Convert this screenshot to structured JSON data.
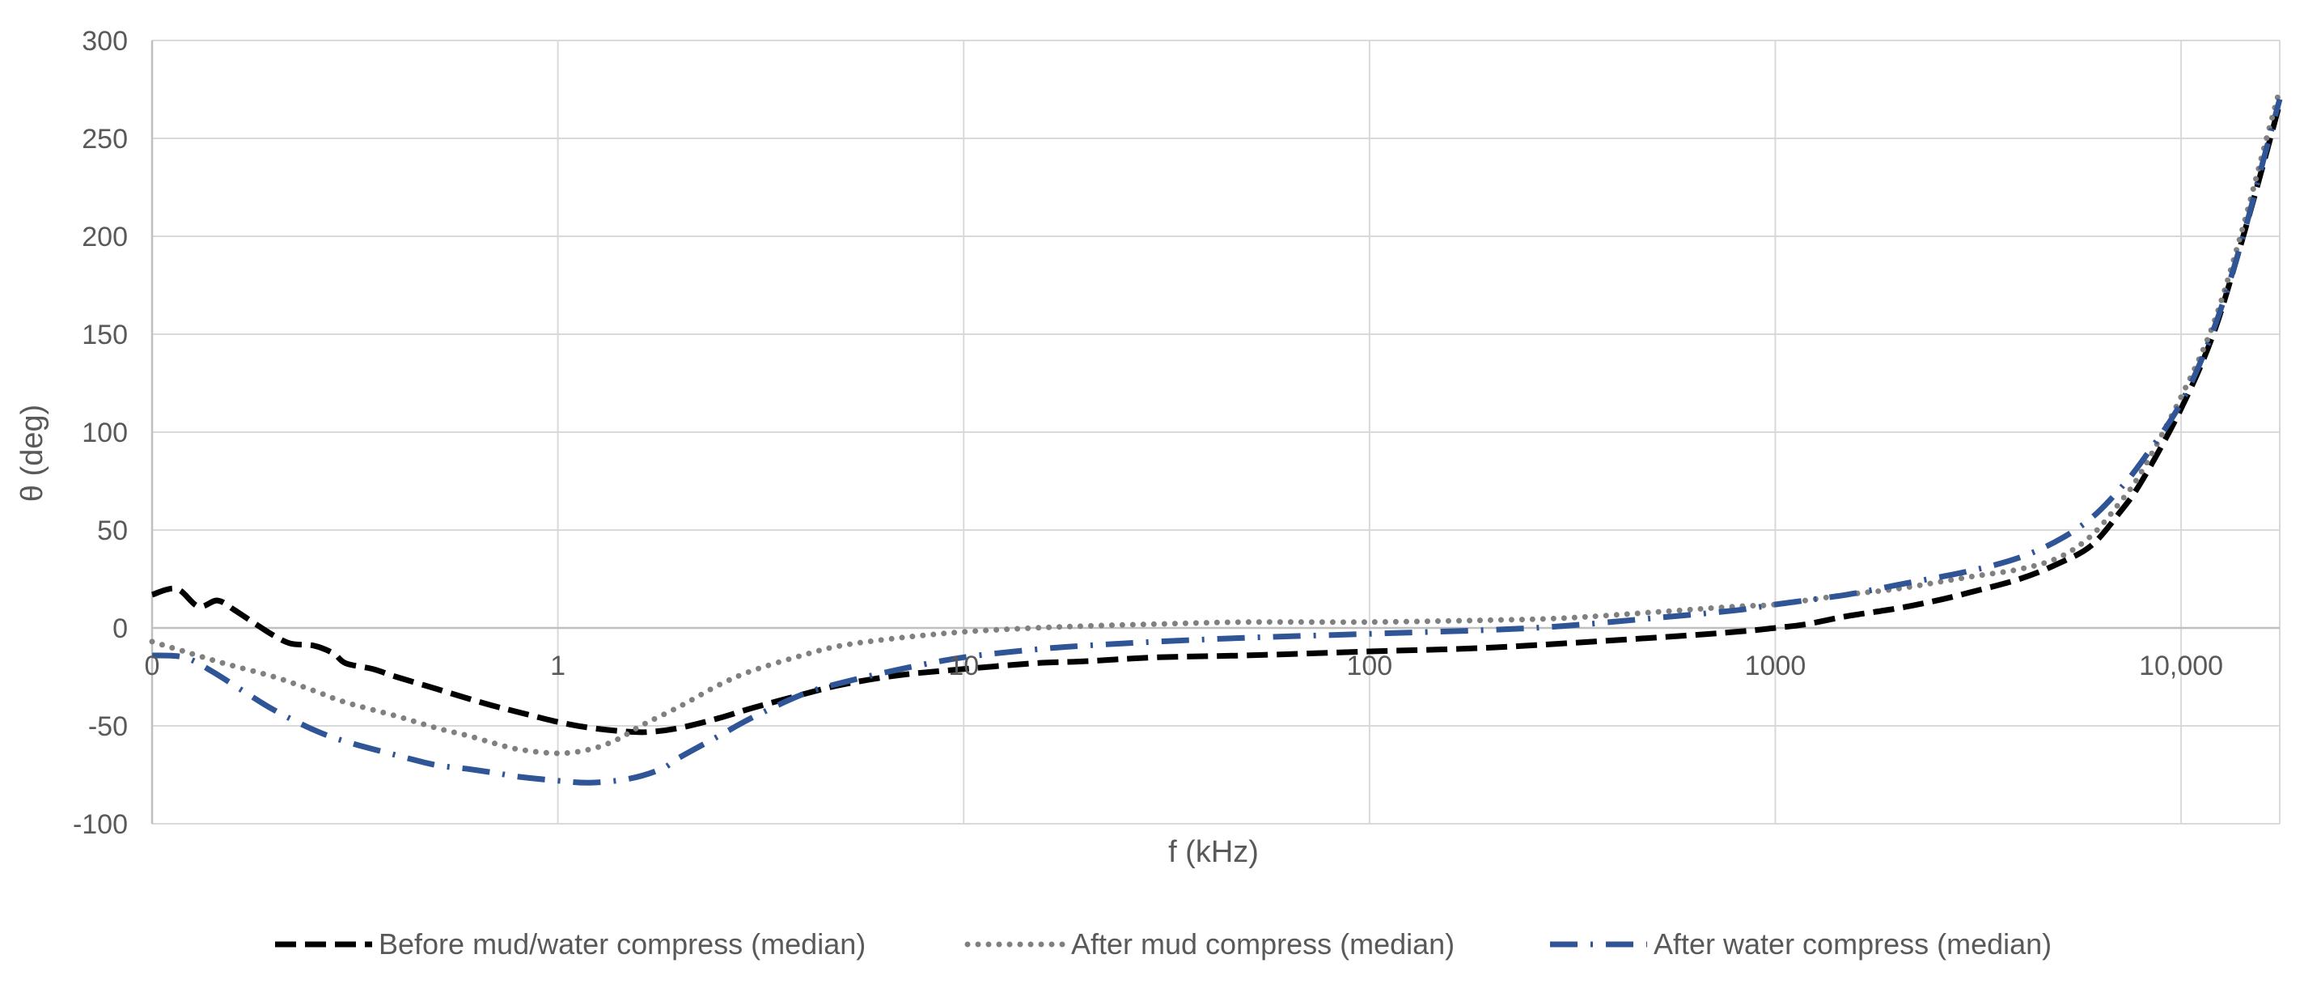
{
  "chart_data": {
    "type": "line",
    "xlabel": "f (kHz)",
    "ylabel": "θ (deg)",
    "x_scale": "log",
    "xlim": [
      0.1,
      17500
    ],
    "ylim": [
      -100,
      300
    ],
    "x_ticks": [
      {
        "value": 0.1,
        "label": "0"
      },
      {
        "value": 1,
        "label": "1"
      },
      {
        "value": 10,
        "label": "10"
      },
      {
        "value": 100,
        "label": "100"
      },
      {
        "value": 1000,
        "label": "1000"
      },
      {
        "value": 10000,
        "label": "10,000"
      }
    ],
    "y_ticks": [
      -100,
      -50,
      0,
      50,
      100,
      150,
      200,
      250,
      300
    ],
    "grid": true,
    "legend_position": "bottom",
    "colors": {
      "grid": "#d9d9d9",
      "axis": "#bfbfbf",
      "text": "#595959"
    },
    "series": [
      {
        "name": "Before mud/water compress (median)",
        "color": "#000000",
        "style": "dashed",
        "points": [
          [
            0.1,
            17
          ],
          [
            0.115,
            20
          ],
          [
            0.13,
            11
          ],
          [
            0.145,
            14
          ],
          [
            0.16,
            9
          ],
          [
            0.18,
            2
          ],
          [
            0.2,
            -4
          ],
          [
            0.22,
            -8
          ],
          [
            0.25,
            -9
          ],
          [
            0.28,
            -13
          ],
          [
            0.3,
            -18
          ],
          [
            0.35,
            -21
          ],
          [
            0.4,
            -25
          ],
          [
            0.5,
            -31
          ],
          [
            0.6,
            -36
          ],
          [
            0.7,
            -40
          ],
          [
            0.8,
            -43
          ],
          [
            1,
            -48
          ],
          [
            1.2,
            -51
          ],
          [
            1.5,
            -53
          ],
          [
            1.7,
            -53
          ],
          [
            2,
            -51
          ],
          [
            2.5,
            -46
          ],
          [
            3,
            -41
          ],
          [
            4,
            -34
          ],
          [
            5,
            -29
          ],
          [
            7,
            -24
          ],
          [
            10,
            -21
          ],
          [
            15,
            -18
          ],
          [
            20,
            -17
          ],
          [
            30,
            -15
          ],
          [
            50,
            -14
          ],
          [
            100,
            -12
          ],
          [
            200,
            -10
          ],
          [
            500,
            -5
          ],
          [
            800,
            -2
          ],
          [
            1000,
            0
          ],
          [
            1200,
            2
          ],
          [
            1500,
            6
          ],
          [
            2000,
            10
          ],
          [
            2500,
            14
          ],
          [
            3000,
            18
          ],
          [
            4000,
            25
          ],
          [
            5000,
            33
          ],
          [
            6000,
            42
          ],
          [
            7000,
            58
          ],
          [
            8000,
            75
          ],
          [
            10000,
            112
          ],
          [
            12000,
            150
          ],
          [
            14000,
            195
          ],
          [
            16000,
            238
          ],
          [
            17500,
            268
          ]
        ]
      },
      {
        "name": "After mud compress (median)",
        "color": "#808080",
        "style": "dotted",
        "points": [
          [
            0.1,
            -7
          ],
          [
            0.12,
            -12
          ],
          [
            0.15,
            -18
          ],
          [
            0.2,
            -25
          ],
          [
            0.25,
            -32
          ],
          [
            0.3,
            -38
          ],
          [
            0.4,
            -45
          ],
          [
            0.5,
            -51
          ],
          [
            0.6,
            -55
          ],
          [
            0.7,
            -59
          ],
          [
            0.8,
            -62
          ],
          [
            1,
            -64
          ],
          [
            1.2,
            -62
          ],
          [
            1.4,
            -57
          ],
          [
            1.6,
            -50
          ],
          [
            2,
            -40
          ],
          [
            2.5,
            -29
          ],
          [
            3,
            -22
          ],
          [
            4,
            -14
          ],
          [
            5,
            -9
          ],
          [
            7,
            -5
          ],
          [
            10,
            -2
          ],
          [
            15,
            0
          ],
          [
            20,
            1
          ],
          [
            30,
            2
          ],
          [
            50,
            3
          ],
          [
            100,
            3
          ],
          [
            200,
            4
          ],
          [
            300,
            5
          ],
          [
            500,
            8
          ],
          [
            800,
            11
          ],
          [
            1000,
            12
          ],
          [
            1500,
            17
          ],
          [
            2000,
            20
          ],
          [
            3000,
            26
          ],
          [
            4000,
            30
          ],
          [
            5000,
            36
          ],
          [
            6000,
            47
          ],
          [
            7000,
            63
          ],
          [
            8000,
            80
          ],
          [
            10000,
            118
          ],
          [
            12000,
            155
          ],
          [
            14000,
            200
          ],
          [
            16000,
            245
          ],
          [
            17500,
            275
          ]
        ]
      },
      {
        "name": "After water compress (median)",
        "color": "#2f5597",
        "style": "dashdot",
        "points": [
          [
            0.1,
            -14
          ],
          [
            0.12,
            -15
          ],
          [
            0.14,
            -22
          ],
          [
            0.17,
            -33
          ],
          [
            0.2,
            -42
          ],
          [
            0.25,
            -52
          ],
          [
            0.3,
            -58
          ],
          [
            0.4,
            -65
          ],
          [
            0.5,
            -70
          ],
          [
            0.6,
            -72
          ],
          [
            0.7,
            -74
          ],
          [
            0.8,
            -76
          ],
          [
            1,
            -78
          ],
          [
            1.2,
            -79
          ],
          [
            1.5,
            -77
          ],
          [
            1.8,
            -72
          ],
          [
            2,
            -66
          ],
          [
            2.5,
            -55
          ],
          [
            3,
            -46
          ],
          [
            4,
            -34
          ],
          [
            5,
            -28
          ],
          [
            7,
            -21
          ],
          [
            10,
            -15
          ],
          [
            15,
            -11
          ],
          [
            20,
            -9
          ],
          [
            30,
            -7
          ],
          [
            50,
            -5
          ],
          [
            100,
            -3
          ],
          [
            200,
            -1
          ],
          [
            300,
            1
          ],
          [
            500,
            5
          ],
          [
            800,
            9
          ],
          [
            1000,
            12
          ],
          [
            1500,
            17
          ],
          [
            2000,
            22
          ],
          [
            3000,
            29
          ],
          [
            4000,
            36
          ],
          [
            5000,
            45
          ],
          [
            6000,
            56
          ],
          [
            7000,
            70
          ],
          [
            8000,
            85
          ],
          [
            10000,
            115
          ],
          [
            12000,
            152
          ],
          [
            14000,
            195
          ],
          [
            16000,
            240
          ],
          [
            17500,
            270
          ]
        ]
      }
    ]
  }
}
